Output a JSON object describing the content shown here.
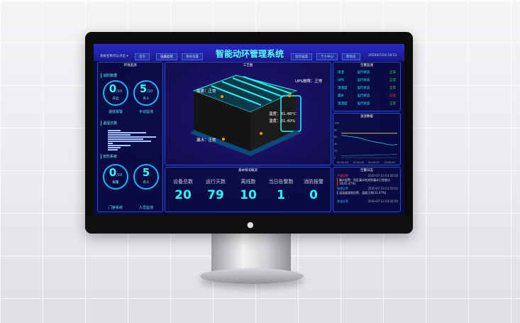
{
  "header": {
    "system_menu": "系统名称可以点击 ▾",
    "nav_left": [
      "首页",
      "设备监控",
      "系统设置"
    ],
    "title": "智能动环管理系统",
    "nav_right": [
      "监控画面",
      "个人中心",
      "帮助台"
    ],
    "datetime": "2020/07/24 18:53"
  },
  "left_panel": {
    "title": "环境监测",
    "fire": {
      "heading": "消防数据",
      "rings": [
        {
          "value": "0",
          "total": "/10",
          "state": "开启",
          "label": "烟感报警"
        },
        {
          "value": "5",
          "total": "/10",
          "state": "有人",
          "label": "手动监测"
        }
      ]
    },
    "temp_count": {
      "heading": "温湿次数",
      "bars": [
        0.25,
        0.75,
        0.45,
        0.95,
        0.7,
        0.85,
        0.1,
        0.45,
        0.25,
        0.2
      ]
    },
    "security": {
      "heading": "安防系统",
      "rings": [
        {
          "value": "0",
          "total": "/10",
          "state": "报警",
          "label": "门禁系统"
        },
        {
          "value": "5",
          "total": "",
          "state": "有人",
          "label": "人员监测"
        }
      ]
    }
  },
  "center": {
    "title": "工艺图",
    "callouts": {
      "smoke": "烟雾：正常",
      "ups": "UPS故障：正常",
      "temp": "温度：31.48°C",
      "humidity": "湿度：31.40%",
      "leak": "漏水：正常"
    },
    "stats_title": "基本情况概况",
    "stats": [
      {
        "label": "设备总数",
        "value": "20"
      },
      {
        "label": "运行天数",
        "value": "79"
      },
      {
        "label": "离线数",
        "value": "10"
      },
      {
        "label": "当日告警数",
        "value": "1"
      },
      {
        "label": "消防报警",
        "value": "0"
      }
    ]
  },
  "right": {
    "status_title": "告警监测",
    "status_rows": [
      {
        "name": "温湿",
        "state": "运行状态",
        "result": "正常"
      },
      {
        "name": "UPS",
        "state": "运行状态",
        "result": "正常"
      },
      {
        "name": "温湿度",
        "state": "运行状态",
        "result": "正常"
      },
      {
        "name": "漏水",
        "state": "运行状态",
        "result": "异常"
      },
      {
        "name": "温湿度",
        "state": "运行状态",
        "result": "正常"
      }
    ],
    "colors": {
      "ok": "#3ddc5a",
      "alarm": "#ff3b3b",
      "accent": "#2ff0ff"
    },
    "log_title": "告警日志",
    "logs": [
      {
        "level": "严重告警",
        "time": "2020-07-23 03:50:50",
        "text": "漏水报警：防区漏水检测到漏水已经超过10(45.47%)",
        "color": "#ff3b5a"
      },
      {
        "level": "普通告警",
        "time": "2020-07-23 03:50:50",
        "text": "温湿度超限告警，温度正常(31.47%)",
        "color": "#2fa8ff"
      },
      {
        "level": "普通告警",
        "time": "2020-07-23 03:50:50",
        "text": "",
        "color": "#2fa8ff"
      }
    ]
  },
  "chart_data": {
    "type": "line",
    "title": "温湿数据",
    "x_ticks": [
      "00:00:18",
      "12:00:00",
      "00:00:00",
      "12:00:00"
    ],
    "ylim": [
      0,
      100
    ],
    "y_ticks": [
      0,
      20,
      40,
      60,
      80,
      100
    ],
    "series": [
      {
        "values": [
          70,
          70,
          70,
          70,
          70,
          70,
          70,
          70,
          70,
          70,
          70,
          70
        ],
        "color": "#e8d44a"
      },
      {
        "values": [
          64,
          62,
          60,
          58,
          55,
          50,
          47,
          44,
          42,
          38,
          36,
          38
        ],
        "color": "#2fc6e0"
      },
      {
        "values": [
          5,
          5,
          6,
          6,
          7,
          7,
          7,
          8,
          8,
          8,
          9,
          9
        ],
        "color": "#1a6a9a"
      }
    ]
  }
}
